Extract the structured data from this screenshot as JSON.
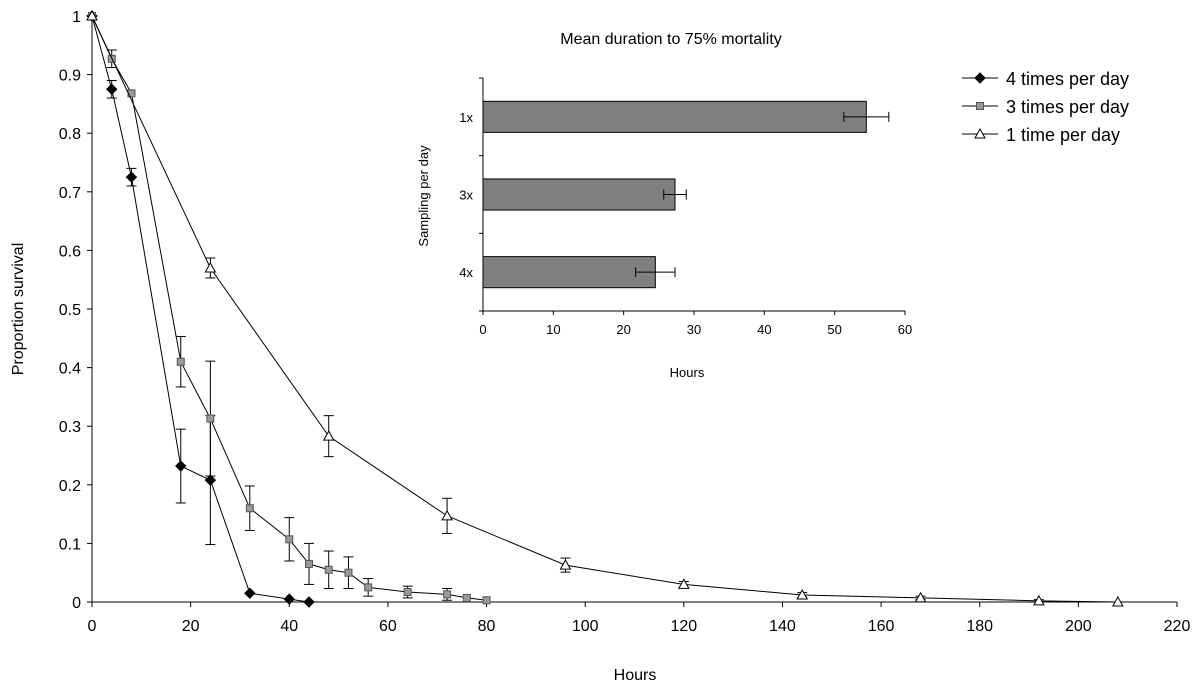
{
  "chart_data": [
    {
      "type": "line",
      "xlabel": "Hours",
      "ylabel": "Proportion survival",
      "xlim": [
        0,
        220
      ],
      "ylim": [
        0,
        1
      ],
      "x_ticks": [
        "0",
        "20",
        "40",
        "60",
        "80",
        "100",
        "120",
        "140",
        "160",
        "180",
        "200",
        "220"
      ],
      "y_ticks": [
        "0",
        "0.1",
        "0.2",
        "0.3",
        "0.4",
        "0.5",
        "0.6",
        "0.7",
        "0.8",
        "0.9",
        "1"
      ],
      "grid": false,
      "legend_position": "top-right",
      "series": [
        {
          "name": "4 times per day",
          "marker": "diamond",
          "marker_color": "#000000",
          "x": [
            0,
            4,
            8,
            18,
            24,
            32,
            40,
            44
          ],
          "y": [
            1.0,
            0.875,
            0.725,
            0.232,
            0.208,
            0.015,
            0.005,
            0.0
          ],
          "err": [
            0,
            0.015,
            0.015,
            0.063,
            0.11,
            0,
            0,
            0
          ]
        },
        {
          "name": "3 times per day",
          "marker": "square",
          "marker_color": "#999999",
          "x": [
            0,
            4,
            8,
            18,
            24,
            32,
            40,
            44,
            48,
            52,
            56,
            64,
            72,
            76,
            80
          ],
          "y": [
            1.0,
            0.927,
            0.868,
            0.41,
            0.313,
            0.16,
            0.107,
            0.065,
            0.055,
            0.05,
            0.025,
            0.017,
            0.013,
            0.007,
            0.003
          ],
          "err": [
            0,
            0.015,
            0,
            0.043,
            0.098,
            0.038,
            0.037,
            0.035,
            0.032,
            0.027,
            0.015,
            0.01,
            0.01,
            0,
            0
          ]
        },
        {
          "name": "1 time per day",
          "marker": "triangle",
          "marker_color": "#ffffff",
          "x": [
            0,
            24,
            48,
            72,
            96,
            120,
            144,
            168,
            192,
            208
          ],
          "y": [
            1.0,
            0.57,
            0.283,
            0.147,
            0.063,
            0.03,
            0.012,
            0.007,
            0.002,
            0.0
          ],
          "err": [
            0,
            0.017,
            0.035,
            0.03,
            0.012,
            0.005,
            0.004,
            0.003,
            0.002,
            0
          ]
        }
      ]
    },
    {
      "type": "bar",
      "orientation": "horizontal",
      "title": "Mean duration to 75% mortality",
      "xlabel": "Hours",
      "ylabel": "Sampling per day",
      "categories": [
        "1x",
        "3x",
        "4x"
      ],
      "values": [
        54.5,
        27.3,
        24.5
      ],
      "err": [
        3.2,
        1.6,
        2.8
      ],
      "xlim": [
        0,
        60
      ],
      "x_ticks": [
        "0",
        "10",
        "20",
        "30",
        "40",
        "50",
        "60"
      ],
      "bar_color": "#808080"
    }
  ]
}
